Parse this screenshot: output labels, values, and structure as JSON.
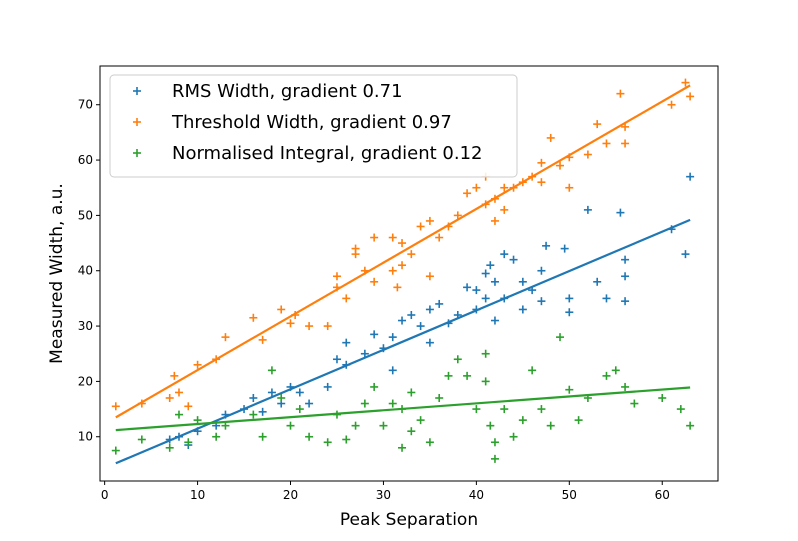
{
  "chart_data": {
    "type": "scatter",
    "title": "",
    "xlabel": "Peak Separation",
    "ylabel": "Measured Width, a.u.",
    "xlim": [
      -0.5,
      66
    ],
    "ylim": [
      2,
      77
    ],
    "xticks": [
      0,
      10,
      20,
      30,
      40,
      50,
      60
    ],
    "yticks": [
      10,
      20,
      30,
      40,
      50,
      60,
      70
    ],
    "grid": false,
    "legend_position": "top-left",
    "series": [
      {
        "name": "RMS Width, gradient 0.71",
        "color": "#1f77b4",
        "marker": "plus",
        "fit_line": {
          "x": [
            1.2,
            63.0
          ],
          "y": [
            5.2,
            49.2
          ]
        },
        "points": [
          [
            7,
            9.5
          ],
          [
            8,
            10
          ],
          [
            9,
            8.5
          ],
          [
            10,
            11
          ],
          [
            12,
            12
          ],
          [
            13,
            14
          ],
          [
            15,
            15
          ],
          [
            16,
            17
          ],
          [
            17,
            14.5
          ],
          [
            18,
            18
          ],
          [
            19,
            16
          ],
          [
            20,
            19
          ],
          [
            21,
            18
          ],
          [
            22,
            16
          ],
          [
            24,
            19
          ],
          [
            25,
            24
          ],
          [
            26,
            23
          ],
          [
            26,
            27
          ],
          [
            28,
            25
          ],
          [
            29,
            28.5
          ],
          [
            30,
            26
          ],
          [
            31,
            22
          ],
          [
            31,
            28
          ],
          [
            32,
            31
          ],
          [
            33,
            32
          ],
          [
            34,
            30
          ],
          [
            35,
            27
          ],
          [
            35,
            33
          ],
          [
            36,
            34
          ],
          [
            37,
            30.5
          ],
          [
            38,
            32
          ],
          [
            39,
            37
          ],
          [
            40,
            36.5
          ],
          [
            40,
            33
          ],
          [
            41,
            35
          ],
          [
            41,
            39.5
          ],
          [
            41.5,
            41
          ],
          [
            42,
            38
          ],
          [
            43,
            43
          ],
          [
            42,
            31
          ],
          [
            43,
            35
          ],
          [
            44,
            42
          ],
          [
            45,
            38
          ],
          [
            45,
            33
          ],
          [
            46,
            36.5
          ],
          [
            47,
            34.5
          ],
          [
            47,
            40
          ],
          [
            47.5,
            44.5
          ],
          [
            49.5,
            44
          ],
          [
            50,
            32.5
          ],
          [
            50,
            35
          ],
          [
            52,
            51
          ],
          [
            53,
            38
          ],
          [
            54,
            35
          ],
          [
            55.5,
            50.5
          ],
          [
            56,
            42
          ],
          [
            56,
            34.5
          ],
          [
            56,
            39
          ],
          [
            61,
            47.5
          ],
          [
            62.5,
            43
          ],
          [
            63,
            57
          ]
        ]
      },
      {
        "name": "Threshold Width, gradient 0.97",
        "color": "#ff7f0e",
        "marker": "plus",
        "fit_line": {
          "x": [
            1.2,
            63.0
          ],
          "y": [
            13.5,
            73.5
          ]
        },
        "points": [
          [
            1.2,
            15.5
          ],
          [
            4,
            16
          ],
          [
            7,
            17
          ],
          [
            7.5,
            21
          ],
          [
            8,
            18
          ],
          [
            9,
            15.5
          ],
          [
            10,
            23
          ],
          [
            12,
            24
          ],
          [
            13,
            28
          ],
          [
            16,
            31.5
          ],
          [
            17,
            27.5
          ],
          [
            19,
            33
          ],
          [
            20,
            30.5
          ],
          [
            20.5,
            32
          ],
          [
            22,
            30
          ],
          [
            24,
            30
          ],
          [
            25,
            37
          ],
          [
            25,
            39
          ],
          [
            26,
            35
          ],
          [
            27,
            43
          ],
          [
            27,
            44
          ],
          [
            28,
            40
          ],
          [
            29,
            46
          ],
          [
            29,
            38
          ],
          [
            31,
            46
          ],
          [
            31,
            40
          ],
          [
            31.5,
            37
          ],
          [
            32,
            41
          ],
          [
            32,
            45
          ],
          [
            33,
            43
          ],
          [
            34,
            48
          ],
          [
            35,
            49
          ],
          [
            35,
            39
          ],
          [
            36,
            46
          ],
          [
            37,
            48
          ],
          [
            38,
            50
          ],
          [
            39,
            54
          ],
          [
            40,
            55
          ],
          [
            41,
            52
          ],
          [
            41,
            57
          ],
          [
            42,
            53
          ],
          [
            42,
            49
          ],
          [
            43,
            51
          ],
          [
            43,
            55
          ],
          [
            44,
            55
          ],
          [
            45,
            56
          ],
          [
            46,
            57
          ],
          [
            47,
            59.5
          ],
          [
            47,
            56
          ],
          [
            48,
            64
          ],
          [
            49,
            59
          ],
          [
            50,
            60.5
          ],
          [
            50,
            55
          ],
          [
            52,
            61
          ],
          [
            53,
            66.5
          ],
          [
            54,
            63
          ],
          [
            55.5,
            72
          ],
          [
            56,
            66
          ],
          [
            56,
            63
          ],
          [
            61,
            70
          ],
          [
            62.5,
            74
          ],
          [
            63,
            71.5
          ]
        ]
      },
      {
        "name": "Normalised Integral, gradient 0.12",
        "color": "#2ca02c",
        "marker": "plus",
        "fit_line": {
          "x": [
            1.2,
            63.0
          ],
          "y": [
            11.2,
            18.9
          ]
        },
        "points": [
          [
            1.2,
            7.5
          ],
          [
            4,
            9.5
          ],
          [
            7,
            8
          ],
          [
            8,
            14
          ],
          [
            9,
            9
          ],
          [
            10,
            13
          ],
          [
            12,
            10
          ],
          [
            13,
            12
          ],
          [
            16,
            14
          ],
          [
            17,
            10
          ],
          [
            18,
            22
          ],
          [
            19,
            17
          ],
          [
            20,
            12
          ],
          [
            21,
            15
          ],
          [
            22,
            10
          ],
          [
            24,
            9
          ],
          [
            25,
            14
          ],
          [
            26,
            9.5
          ],
          [
            27,
            12
          ],
          [
            28,
            16
          ],
          [
            29,
            19
          ],
          [
            30,
            12
          ],
          [
            31,
            16
          ],
          [
            32,
            15
          ],
          [
            32,
            8
          ],
          [
            33,
            11
          ],
          [
            33,
            18
          ],
          [
            34,
            13
          ],
          [
            35,
            9
          ],
          [
            36,
            17
          ],
          [
            37,
            21
          ],
          [
            38,
            24
          ],
          [
            39,
            21
          ],
          [
            40,
            15
          ],
          [
            41,
            20
          ],
          [
            41,
            25
          ],
          [
            41.5,
            12
          ],
          [
            42,
            9
          ],
          [
            42,
            6
          ],
          [
            43,
            15
          ],
          [
            44,
            10
          ],
          [
            45,
            13
          ],
          [
            46,
            22
          ],
          [
            47,
            15
          ],
          [
            48,
            12
          ],
          [
            49,
            28
          ],
          [
            50,
            18.5
          ],
          [
            51,
            13
          ],
          [
            52,
            17
          ],
          [
            54,
            21
          ],
          [
            55,
            22
          ],
          [
            56,
            19
          ],
          [
            57,
            16
          ],
          [
            60,
            17
          ],
          [
            62,
            15
          ],
          [
            63,
            12
          ]
        ]
      }
    ]
  }
}
